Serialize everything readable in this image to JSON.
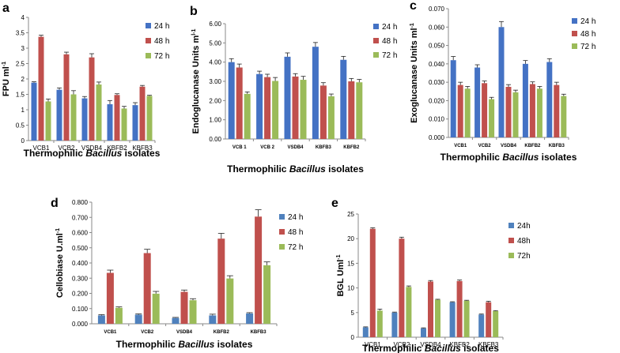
{
  "chart_data": [
    {
      "panel": "a",
      "type": "bar",
      "ylabel": "FPU ml",
      "ylabel_sup": "-1",
      "xlabel_pre": "Thermophilic ",
      "xlabel_em": "Bacillus",
      "xlabel_post": " isolates",
      "categories": [
        "VCB1",
        "VCB2",
        "VSDB4",
        "KBFB2",
        "KBFB3"
      ],
      "ylim": [
        0,
        4
      ],
      "yticks": [
        "0",
        "0.5",
        "1",
        "1.5",
        "2",
        "2.5",
        "3",
        "3.5",
        "4"
      ],
      "series": [
        {
          "name": "24 h",
          "color": "#4472C4",
          "values": [
            1.88,
            1.65,
            1.37,
            1.18,
            1.15
          ],
          "errors": [
            0.03,
            0.06,
            0.06,
            0.12,
            0.08
          ]
        },
        {
          "name": "48 h",
          "color": "#C0504D",
          "values": [
            3.37,
            2.8,
            2.7,
            1.48,
            1.75
          ],
          "errors": [
            0.05,
            0.07,
            0.12,
            0.04,
            0.04
          ]
        },
        {
          "name": "72 h",
          "color": "#9BBB59",
          "values": [
            1.27,
            1.5,
            1.82,
            1.04,
            1.45
          ],
          "errors": [
            0.08,
            0.12,
            0.08,
            0.07,
            0.02
          ]
        }
      ]
    },
    {
      "panel": "b",
      "type": "bar",
      "ylabel": "Endoglucanase  Units m",
      "ylabel_sup": "l-1",
      "xlabel_pre": "Thermophilic ",
      "xlabel_em": "Bacillus",
      "xlabel_post": " isolates",
      "categories": [
        "VCB 1",
        "VCB 2",
        "VSDB4",
        "KBFB3",
        "KBFB2"
      ],
      "ylim": [
        0,
        6
      ],
      "yticks": [
        "0.00",
        "1.00",
        "2.00",
        "3.00",
        "4.00",
        "5.00",
        "6.00"
      ],
      "series": [
        {
          "name": "24 h",
          "color": "#4472C4",
          "values": [
            4.0,
            3.38,
            4.28,
            4.8,
            4.12
          ],
          "errors": [
            0.18,
            0.15,
            0.2,
            0.22,
            0.18
          ]
        },
        {
          "name": "48 h",
          "color": "#C0504D",
          "values": [
            3.72,
            3.22,
            3.25,
            2.78,
            3.0
          ],
          "errors": [
            0.18,
            0.15,
            0.15,
            0.15,
            0.15
          ]
        },
        {
          "name": "72 h",
          "color": "#9BBB59",
          "values": [
            2.35,
            3.02,
            3.08,
            2.22,
            2.95
          ],
          "errors": [
            0.1,
            0.18,
            0.18,
            0.12,
            0.15
          ]
        }
      ]
    },
    {
      "panel": "c",
      "type": "bar",
      "ylabel": "Exoglucanase  Units  ml",
      "ylabel_sup": "-1",
      "xlabel_pre": "Thermophilic ",
      "xlabel_em": "Bacillus",
      "xlabel_post": " isolates",
      "categories": [
        "VCB1",
        "VCB2",
        "VSDB4",
        "KBFB2",
        "KBFB3"
      ],
      "ylim": [
        0,
        0.07
      ],
      "yticks": [
        "0.000",
        "0.010",
        "0.020",
        "0.030",
        "0.040",
        "0.050",
        "0.060",
        "0.070"
      ],
      "series": [
        {
          "name": "24 h",
          "color": "#4472C4",
          "values": [
            0.042,
            0.038,
            0.06,
            0.04,
            0.041
          ],
          "errors": [
            0.002,
            0.0015,
            0.003,
            0.0018,
            0.0018
          ]
        },
        {
          "name": "48 h",
          "color": "#C0504D",
          "values": [
            0.0285,
            0.0295,
            0.0275,
            0.029,
            0.0285
          ],
          "errors": [
            0.0015,
            0.0012,
            0.0012,
            0.0012,
            0.0015
          ]
        },
        {
          "name": "72 h",
          "color": "#9BBB59",
          "values": [
            0.0265,
            0.0208,
            0.0245,
            0.0265,
            0.0225
          ],
          "errors": [
            0.0012,
            0.001,
            0.0012,
            0.0012,
            0.001
          ]
        }
      ]
    },
    {
      "panel": "d",
      "type": "bar",
      "ylabel": "Cellobiase U.ml",
      "ylabel_sup": "-1",
      "xlabel_pre": "Thermophilic ",
      "xlabel_em": "Bacillus",
      "xlabel_post": " isolates",
      "categories": [
        "VCB1",
        "VCB2",
        "VSDB4",
        "KBFB2",
        "KBFB3"
      ],
      "ylim": [
        0,
        0.8
      ],
      "yticks": [
        "0.000",
        "0.100",
        "0.200",
        "0.300",
        "0.400",
        "0.500",
        "0.600",
        "0.700",
        "0.800"
      ],
      "series": [
        {
          "name": "24 h",
          "color": "#4F81BD",
          "values": [
            0.055,
            0.06,
            0.038,
            0.055,
            0.068
          ],
          "errors": [
            0.005,
            0.005,
            0.004,
            0.008,
            0.005
          ]
        },
        {
          "name": "48 h",
          "color": "#C0504D",
          "values": [
            0.335,
            0.465,
            0.21,
            0.56,
            0.705
          ],
          "errors": [
            0.018,
            0.025,
            0.012,
            0.035,
            0.045
          ]
        },
        {
          "name": "72 h",
          "color": "#9BBB59",
          "values": [
            0.105,
            0.198,
            0.155,
            0.298,
            0.385
          ],
          "errors": [
            0.006,
            0.015,
            0.01,
            0.018,
            0.022
          ]
        }
      ]
    },
    {
      "panel": "e",
      "type": "bar",
      "ylabel": "BGL Uml",
      "ylabel_sup": "-1",
      "xlabel_pre": "Thermophilic ",
      "xlabel_em": "Bacillus",
      "xlabel_post": " isolates",
      "categories": [
        "VCB1",
        "VCB2",
        "VSDB4",
        "KBFB2",
        "KBFB3"
      ],
      "ylim": [
        0,
        25
      ],
      "yticks": [
        "0",
        "5",
        "10",
        "15",
        "20",
        "25"
      ],
      "series": [
        {
          "name": "24h",
          "color": "#4F81BD",
          "values": [
            2.0,
            5.0,
            1.8,
            7.1,
            4.6
          ],
          "errors": [
            0.1,
            0.1,
            0.1,
            0.1,
            0.1
          ]
        },
        {
          "name": "48h",
          "color": "#C0504D",
          "values": [
            22.0,
            20.0,
            11.3,
            11.4,
            7.1
          ],
          "errors": [
            0.2,
            0.3,
            0.2,
            0.2,
            0.2
          ]
        },
        {
          "name": "72h",
          "color": "#9BBB59",
          "values": [
            5.4,
            10.2,
            7.6,
            7.4,
            5.3
          ],
          "errors": [
            0.3,
            0.2,
            0.1,
            0.1,
            0.1
          ]
        }
      ]
    }
  ]
}
